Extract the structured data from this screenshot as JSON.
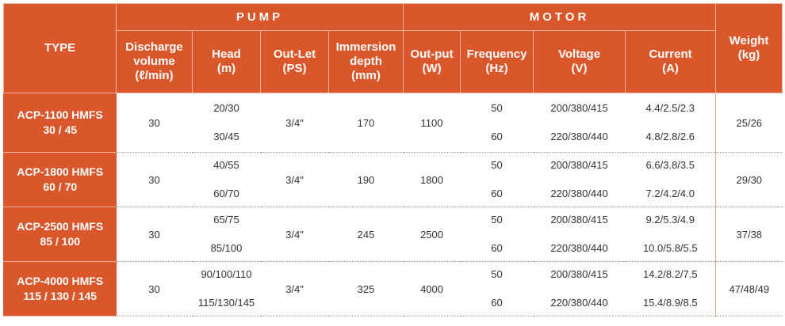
{
  "header": {
    "type": "TYPE",
    "pump": "PUMP",
    "motor": "MOTOR",
    "weight": [
      "Weight",
      "(kg)"
    ],
    "columns": {
      "discharge": [
        "Discharge",
        "volume",
        "(ℓ/min)"
      ],
      "head": [
        "Head",
        "(m)"
      ],
      "outlet": [
        "Out-Let",
        "(PS)"
      ],
      "immersion": [
        "Immersion",
        "depth",
        "(mm)"
      ],
      "output": [
        "Out-put",
        "(W)"
      ],
      "frequency": [
        "Frequency",
        "(Hz)"
      ],
      "voltage": [
        "Voltage",
        "(V)"
      ],
      "current": [
        "Current",
        "(A)"
      ]
    }
  },
  "rows": [
    {
      "type": [
        "ACP-1100 HMFS",
        "30 / 45"
      ],
      "discharge": "30",
      "head": [
        "20/30",
        "30/45"
      ],
      "outlet": "3/4\"",
      "immersion": "170",
      "output": "1100",
      "frequency": [
        "50",
        "60"
      ],
      "voltage": [
        "200/380/415",
        "220/380/440"
      ],
      "current": [
        "4.4/2.5/2.3",
        "4.8/2.8/2.6"
      ],
      "weight": "25/26"
    },
    {
      "type": [
        "ACP-1800 HMFS",
        "60 / 70"
      ],
      "discharge": "30",
      "head": [
        "40/55",
        "60/70"
      ],
      "outlet": "3/4\"",
      "immersion": "190",
      "output": "1800",
      "frequency": [
        "50",
        "60"
      ],
      "voltage": [
        "200/380/415",
        "220/380/440"
      ],
      "current": [
        "6.6/3.8/3.5",
        "7.2/4.2/4.0"
      ],
      "weight": "29/30"
    },
    {
      "type": [
        "ACP-2500 HMFS",
        "85 / 100"
      ],
      "discharge": "30",
      "head": [
        "65/75",
        "85/100"
      ],
      "outlet": "3/4\"",
      "immersion": "245",
      "output": "2500",
      "frequency": [
        "50",
        "60"
      ],
      "voltage": [
        "200/380/415",
        "220/380/440"
      ],
      "current": [
        "9.2/5.3/4.9",
        "10.0/5.8/5.5"
      ],
      "weight": "37/38"
    },
    {
      "type": [
        "ACP-4000 HMFS",
        "115 / 130 / 145"
      ],
      "discharge": "30",
      "head": [
        "90/100/110",
        "115/130/145"
      ],
      "outlet": "3/4\"",
      "immersion": "325",
      "output": "4000",
      "frequency": [
        "50",
        "60"
      ],
      "voltage": [
        "200/380/415",
        "220/380/440"
      ],
      "current": [
        "14.2/8.2/7.5",
        "15.4/8.9/8.5"
      ],
      "weight": "47/48/49"
    }
  ],
  "colors": {
    "header_bg": "#d9572b",
    "header_text": "#ffffff",
    "body_text": "#333333"
  }
}
